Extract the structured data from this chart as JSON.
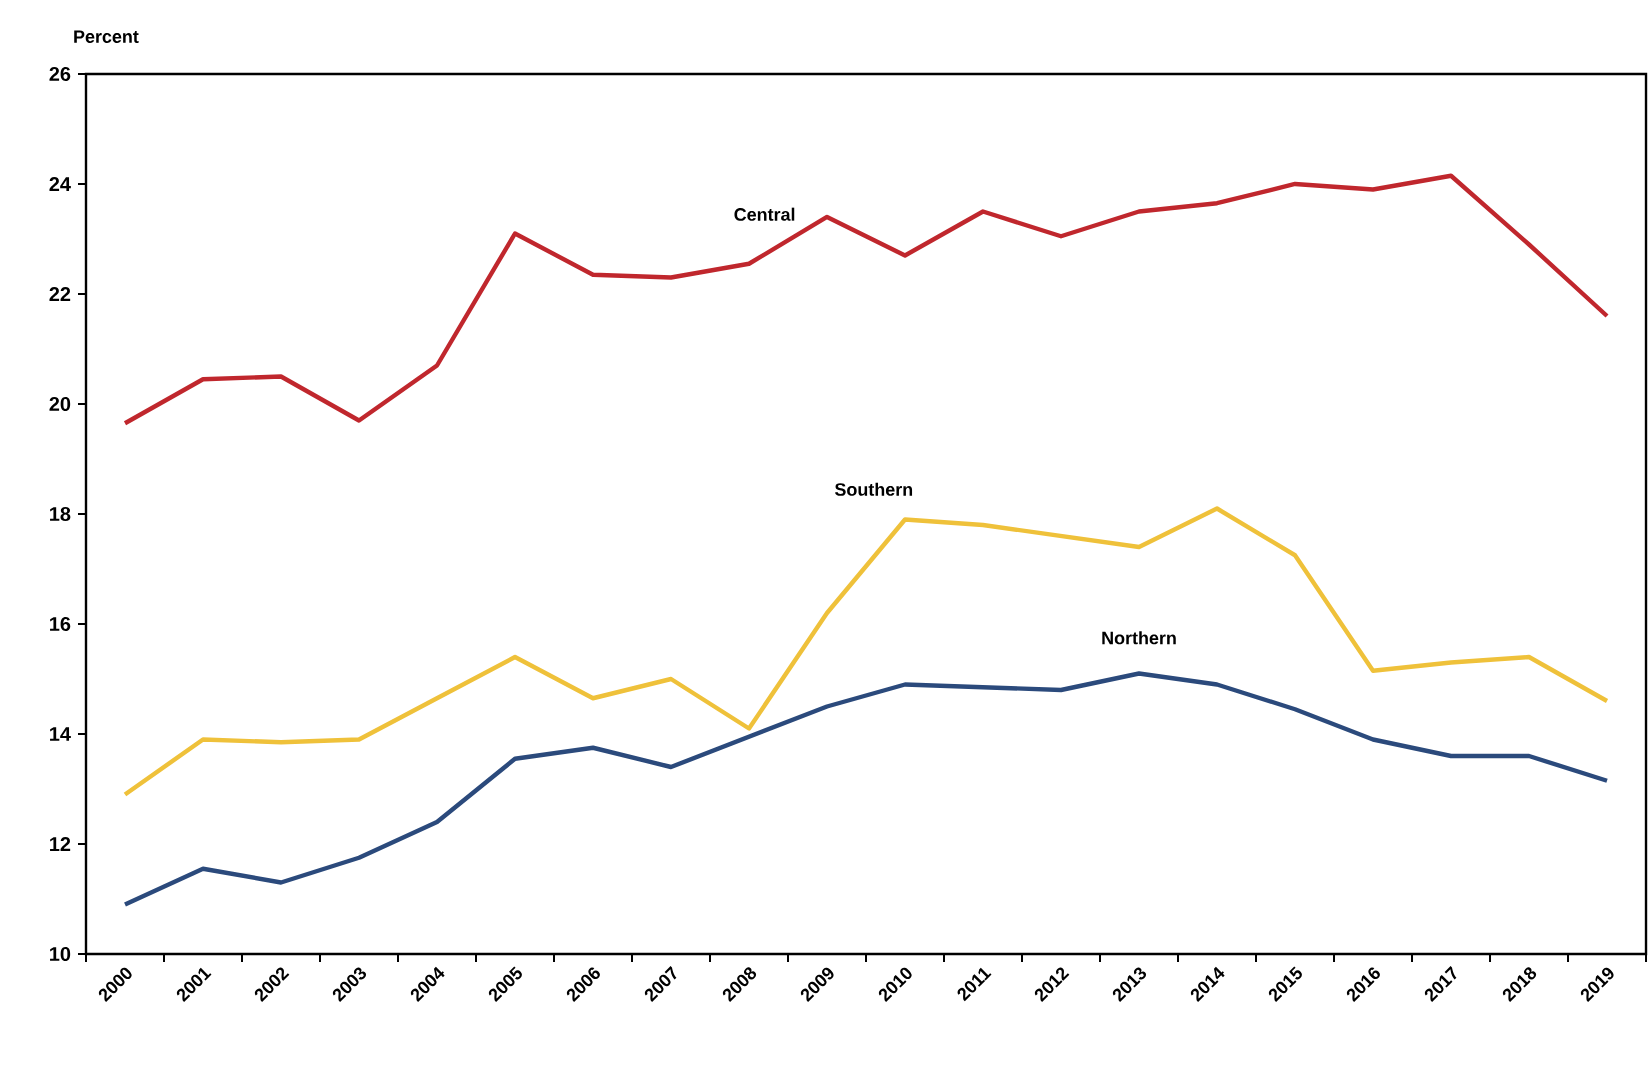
{
  "chart_data": {
    "type": "line",
    "ylabel": "Percent",
    "categories": [
      "2000",
      "2001",
      "2002",
      "2003",
      "2004",
      "2005",
      "2006",
      "2007",
      "2008",
      "2009",
      "2010",
      "2011",
      "2012",
      "2013",
      "2014",
      "2015",
      "2016",
      "2017",
      "2018",
      "2019"
    ],
    "series": [
      {
        "name": "Central",
        "color": "#c0272d",
        "values": [
          19.65,
          20.45,
          20.5,
          19.7,
          20.7,
          23.1,
          22.35,
          22.3,
          22.55,
          23.4,
          22.7,
          23.5,
          23.05,
          23.5,
          23.65,
          24.0,
          23.9,
          24.15,
          22.9,
          21.6
        ]
      },
      {
        "name": "Southern",
        "color": "#efc13a",
        "values": [
          12.9,
          13.9,
          13.85,
          13.9,
          14.65,
          15.4,
          14.65,
          15.0,
          14.1,
          16.2,
          17.9,
          17.8,
          17.6,
          17.4,
          18.1,
          17.25,
          15.15,
          15.3,
          15.4,
          14.6
        ]
      },
      {
        "name": "Northern",
        "color": "#2b4a7c",
        "values": [
          10.9,
          11.55,
          11.3,
          11.75,
          12.4,
          13.55,
          13.75,
          13.4,
          13.95,
          14.5,
          14.9,
          14.85,
          14.8,
          15.1,
          14.9,
          14.45,
          13.9,
          13.6,
          13.6,
          13.15
        ]
      }
    ],
    "ylim": [
      10,
      26
    ],
    "yticks": [
      10,
      12,
      14,
      16,
      18,
      20,
      22,
      24,
      26
    ],
    "grid": false,
    "legend": false,
    "marker": "none",
    "line_style": "solid"
  }
}
